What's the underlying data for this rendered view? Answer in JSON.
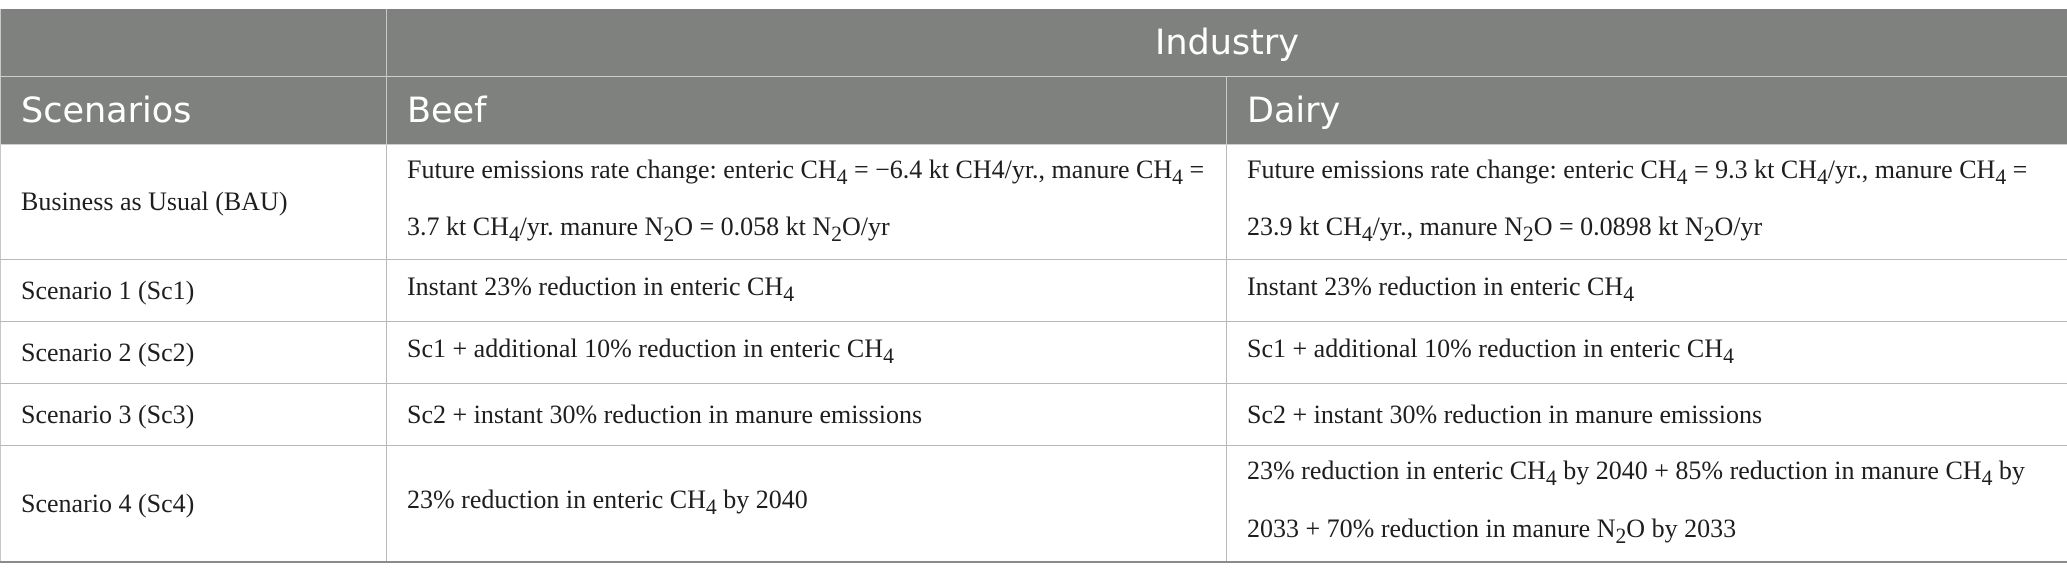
{
  "header": {
    "group_label": "Industry",
    "col_scenarios": "Scenarios",
    "col_beef": "Beef",
    "col_dairy": "Dairy"
  },
  "rows": [
    {
      "scenario": "Business as Usual (BAU)",
      "beef_html": "Future emissions rate change: enteric CH<sub>4</sub> = −6.4 kt CH4/yr., manure CH<sub>4</sub> = 3.7 kt CH<sub>4</sub>/yr. manure N<sub>2</sub>O = 0.058 kt N<sub>2</sub>O/yr",
      "dairy_html": "Future emissions rate change: enteric CH<sub>4</sub> = 9.3 kt CH<sub>4</sub>/yr., manure CH<sub>4</sub> = 23.9 kt CH<sub>4</sub>/yr., manure N<sub>2</sub>O = 0.0898 kt N<sub>2</sub>O/yr"
    },
    {
      "scenario": "Scenario 1 (Sc1)",
      "beef_html": "Instant 23% reduction in enteric CH<sub>4</sub>",
      "dairy_html": "Instant 23% reduction in enteric CH<sub>4</sub>"
    },
    {
      "scenario": "Scenario 2 (Sc2)",
      "beef_html": "Sc1 + additional 10% reduction in enteric CH<sub>4</sub>",
      "dairy_html": "Sc1 + additional 10% reduction in enteric CH<sub>4</sub>"
    },
    {
      "scenario": "Scenario 3 (Sc3)",
      "beef_html": "Sc2 + instant 30% reduction in manure emissions",
      "dairy_html": "Sc2 + instant 30% reduction in manure emissions"
    },
    {
      "scenario": "Scenario 4 (Sc4)",
      "beef_html": "23% reduction in enteric CH<sub>4</sub> by 2040",
      "dairy_html": "23% reduction in enteric CH<sub>4</sub> by 2040 + 85% reduction in manure CH<sub>4</sub> by 2033 + 70% reduction in manure N<sub>2</sub>O by 2033"
    }
  ]
}
